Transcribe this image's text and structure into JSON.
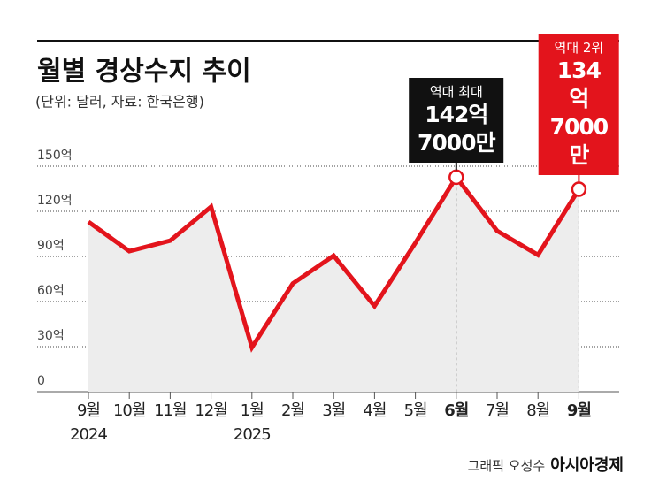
{
  "chart_data": {
    "type": "line",
    "title": "월별 경상수지 추이",
    "subtitle": "(단위: 달러, 자료: 한국은행)",
    "categories": [
      "9월",
      "10월",
      "11월",
      "12월",
      "1월",
      "2월",
      "3월",
      "4월",
      "5월",
      "6월",
      "7월",
      "8월",
      "9월"
    ],
    "years": [
      "2024",
      null,
      null,
      null,
      "2025",
      null,
      null,
      null,
      null,
      null,
      null,
      null,
      null
    ],
    "values": [
      113,
      93.5,
      100.5,
      123,
      29.5,
      72,
      90.5,
      57,
      99,
      142.7,
      107,
      91,
      134.7
    ],
    "value_labels": [
      null,
      null,
      null,
      null,
      null,
      null,
      null,
      null,
      null,
      "142억\n7000만",
      null,
      null,
      "134억\n7000만"
    ],
    "annotations": [
      {
        "index": 9,
        "label": "역대 최대",
        "color": "#111111"
      },
      {
        "index": 12,
        "label": "역대 2위",
        "color": "#e3141c"
      }
    ],
    "color": "#e3141c",
    "ylim": [
      0,
      150
    ],
    "yticks": [
      0,
      {
        "value": 30,
        "label": "30억"
      },
      {
        "value": 60,
        "label": "60억"
      },
      {
        "value": 90,
        "label": "90억"
      },
      {
        "value": 120,
        "label": "120억"
      },
      {
        "value": 150,
        "label": "150억"
      }
    ],
    "grid": true,
    "credit": "그래픽 오성수",
    "source": "아시아경제"
  }
}
